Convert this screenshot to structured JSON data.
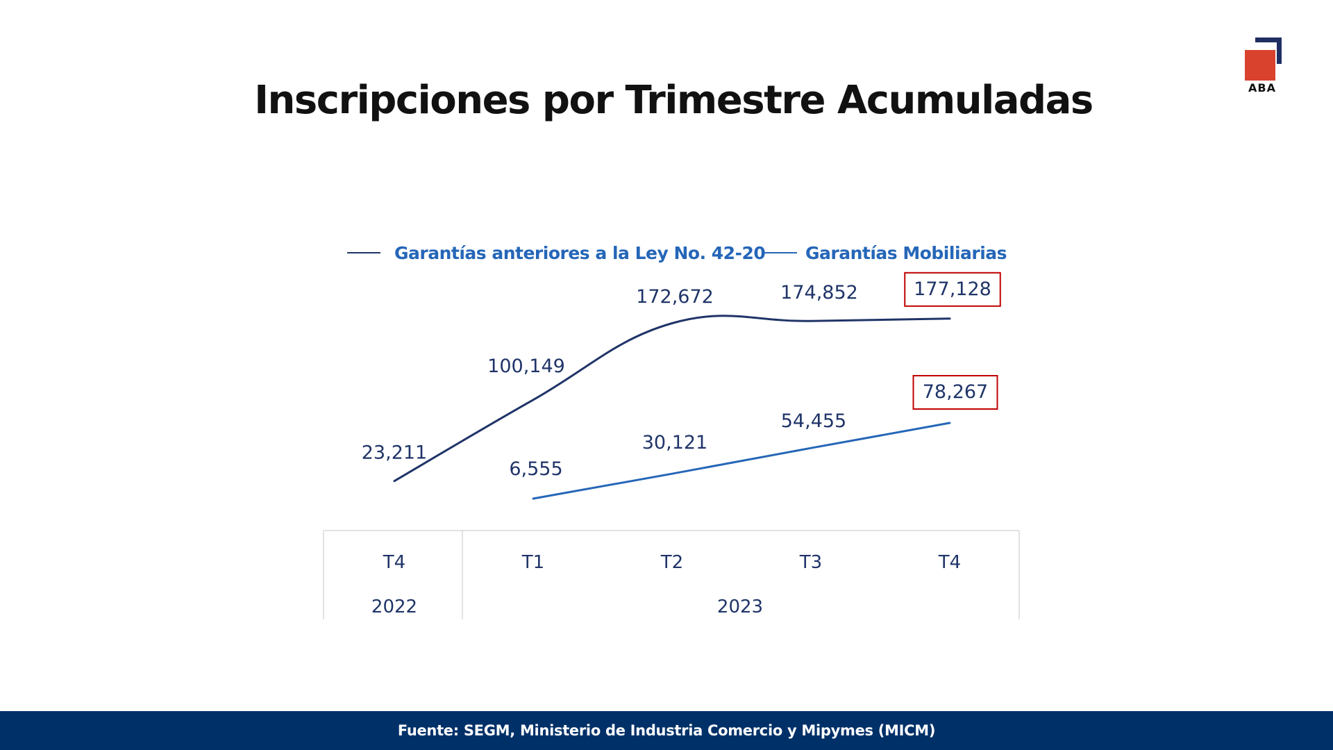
{
  "slide": {
    "title": "Inscripciones por Trimestre Acumuladas",
    "logo_text": "ABA",
    "footer": "Fuente: SEGM, Ministerio de Industria Comercio y Mipymes (MICM)"
  },
  "colors": {
    "series_dark": "#1f3468",
    "series_blue": "#2566b8",
    "highlight_box": "#c00000",
    "label_text": "#1f3468",
    "legend_text": "#2566b8",
    "footer_bg": "#003068",
    "logo_red": "#d9422d"
  },
  "chart_data": {
    "type": "line",
    "title": "",
    "xlabel": "",
    "ylabel": "",
    "categories": [
      "T4",
      "T1",
      "T2",
      "T3",
      "T4"
    ],
    "category_groups": [
      {
        "label": "2022",
        "categories": [
          "T4"
        ]
      },
      {
        "label": "2023",
        "categories": [
          "T1",
          "T2",
          "T3",
          "T4"
        ]
      }
    ],
    "series": [
      {
        "name": "Garantías anteriores a la Ley No. 42-20",
        "values": [
          23211,
          100149,
          172672,
          174852,
          177128
        ],
        "labels": [
          "23,211",
          "100,149",
          "172,672",
          "174,852",
          "177,128"
        ],
        "highlight_last": true
      },
      {
        "name": "Garantías Mobiliarias",
        "values": [
          null,
          6555,
          30121,
          54455,
          78267
        ],
        "labels": [
          null,
          "6,555",
          "30,121",
          "54,455",
          "78,267"
        ],
        "highlight_last": true
      }
    ],
    "ylim": [
      0,
      200000
    ],
    "grid": false,
    "legend": "top"
  }
}
